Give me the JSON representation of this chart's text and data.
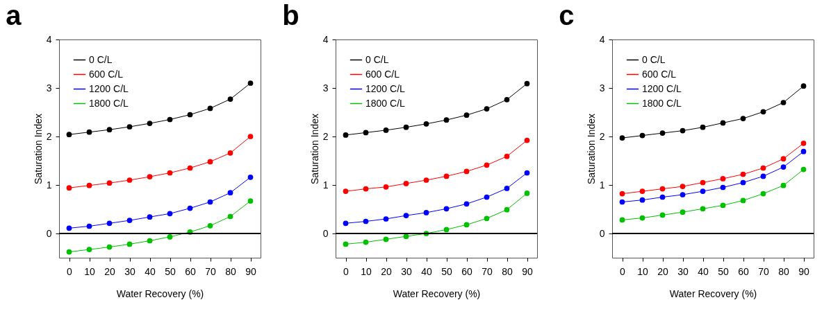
{
  "chart_data": [
    {
      "type": "line",
      "title": "a",
      "xlabel": "Water Recovery (%)",
      "ylabel": "Saturation Index",
      "x": [
        0,
        10,
        20,
        30,
        40,
        50,
        60,
        70,
        80,
        90
      ],
      "xlim": [
        -5,
        95
      ],
      "xticks": [
        0,
        10,
        20,
        30,
        40,
        50,
        60,
        70,
        80,
        90
      ],
      "ylim": [
        -0.5,
        4
      ],
      "yticks": [
        0,
        1,
        2,
        3,
        4
      ],
      "grid": false,
      "legend": "top left",
      "marker": "circle",
      "ref_lines": [
        {
          "axis": "y",
          "value": 0,
          "color": "#000000"
        }
      ],
      "series": [
        {
          "name": "0 C/L",
          "color": "#000000",
          "values": [
            2.04,
            2.09,
            2.14,
            2.2,
            2.27,
            2.35,
            2.45,
            2.58,
            2.77,
            3.1
          ]
        },
        {
          "name": "600 C/L",
          "color": "#ff0000",
          "values": [
            0.94,
            0.99,
            1.04,
            1.1,
            1.17,
            1.25,
            1.35,
            1.48,
            1.66,
            2.0
          ]
        },
        {
          "name": "1200 C/L",
          "color": "#0000ff",
          "values": [
            0.11,
            0.15,
            0.21,
            0.27,
            0.34,
            0.41,
            0.52,
            0.65,
            0.84,
            1.16
          ]
        },
        {
          "name": "1800 C/L",
          "color": "#00c000",
          "values": [
            -0.38,
            -0.33,
            -0.28,
            -0.22,
            -0.15,
            -0.07,
            0.03,
            0.16,
            0.35,
            0.67
          ]
        }
      ]
    },
    {
      "type": "line",
      "title": "b",
      "xlabel": "Water Recovery (%)",
      "ylabel": "Saturation Index",
      "x": [
        0,
        10,
        20,
        30,
        40,
        50,
        60,
        70,
        80,
        90
      ],
      "xlim": [
        -5,
        95
      ],
      "xticks": [
        0,
        10,
        20,
        30,
        40,
        50,
        60,
        70,
        80,
        90
      ],
      "ylim": [
        -0.5,
        4
      ],
      "yticks": [
        0,
        1,
        2,
        3,
        4
      ],
      "grid": false,
      "legend": "top left",
      "marker": "circle",
      "ref_lines": [
        {
          "axis": "y",
          "value": 0,
          "color": "#000000"
        }
      ],
      "series": [
        {
          "name": "0 C/L",
          "color": "#000000",
          "values": [
            2.03,
            2.08,
            2.13,
            2.19,
            2.26,
            2.34,
            2.44,
            2.57,
            2.76,
            3.09
          ]
        },
        {
          "name": "600 C/L",
          "color": "#ff0000",
          "values": [
            0.87,
            0.92,
            0.96,
            1.03,
            1.1,
            1.18,
            1.28,
            1.41,
            1.59,
            1.92
          ]
        },
        {
          "name": "1200 C/L",
          "color": "#0000ff",
          "values": [
            0.21,
            0.25,
            0.3,
            0.37,
            0.43,
            0.51,
            0.61,
            0.75,
            0.93,
            1.25
          ]
        },
        {
          "name": "1800 C/L",
          "color": "#00c000",
          "values": [
            -0.22,
            -0.18,
            -0.12,
            -0.06,
            0.0,
            0.08,
            0.18,
            0.31,
            0.49,
            0.83
          ]
        }
      ]
    },
    {
      "type": "line",
      "title": "c",
      "xlabel": "Water Recovery (%)",
      "ylabel": "Saturation Index",
      "x": [
        0,
        10,
        20,
        30,
        40,
        50,
        60,
        70,
        80,
        90
      ],
      "xlim": [
        -5,
        95
      ],
      "xticks": [
        0,
        10,
        20,
        30,
        40,
        50,
        60,
        70,
        80,
        90
      ],
      "ylim": [
        -0.5,
        4
      ],
      "yticks": [
        0,
        1,
        2,
        3,
        4
      ],
      "grid": false,
      "legend": "top left",
      "marker": "circle",
      "ref_lines": [
        {
          "axis": "y",
          "value": 0,
          "color": "#000000"
        }
      ],
      "series": [
        {
          "name": "0 C/L",
          "color": "#000000",
          "values": [
            1.97,
            2.02,
            2.07,
            2.12,
            2.19,
            2.28,
            2.37,
            2.51,
            2.7,
            3.04
          ]
        },
        {
          "name": "600 C/L",
          "color": "#ff0000",
          "values": [
            0.82,
            0.87,
            0.92,
            0.97,
            1.05,
            1.13,
            1.22,
            1.35,
            1.54,
            1.86
          ]
        },
        {
          "name": "1200 C/L",
          "color": "#0000ff",
          "values": [
            0.65,
            0.69,
            0.75,
            0.8,
            0.87,
            0.95,
            1.05,
            1.18,
            1.37,
            1.69
          ]
        },
        {
          "name": "1800 C/L",
          "color": "#00c000",
          "values": [
            0.28,
            0.32,
            0.38,
            0.44,
            0.51,
            0.58,
            0.68,
            0.82,
            0.99,
            1.32
          ]
        }
      ]
    }
  ]
}
